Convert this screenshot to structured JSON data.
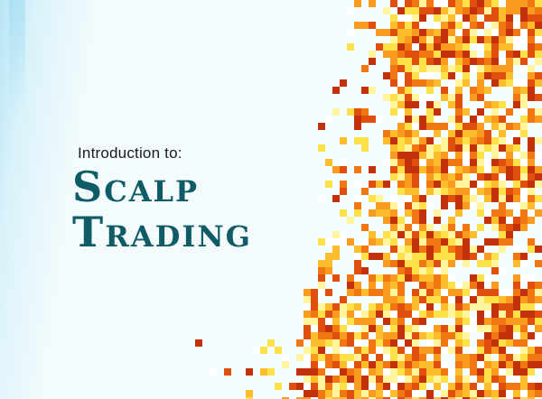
{
  "title": {
    "intro": "Introduction to:",
    "line1": "Scalp",
    "line2": "Trading"
  },
  "palette": {
    "background": "#f3fbfd",
    "title_color": "#0f5c66",
    "heat": [
      "#c0300a",
      "#e04d0c",
      "#f07814",
      "#f89a1e",
      "#fbbd2c",
      "#fde04a",
      "#fff3a0",
      "#ffffff"
    ]
  }
}
